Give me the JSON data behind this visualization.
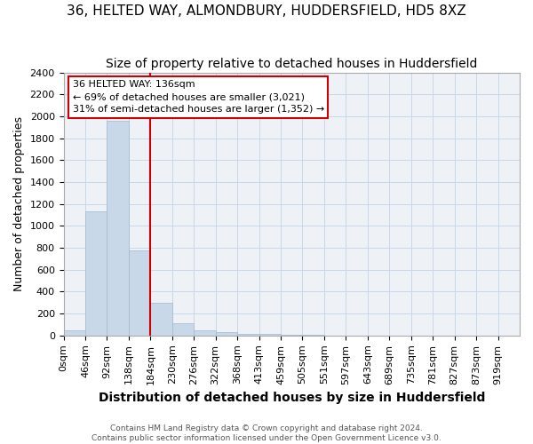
{
  "title1": "36, HELTED WAY, ALMONDBURY, HUDDERSFIELD, HD5 8XZ",
  "title2": "Size of property relative to detached houses in Huddersfield",
  "xlabel": "Distribution of detached houses by size in Huddersfield",
  "ylabel": "Number of detached properties",
  "footer": "Contains HM Land Registry data © Crown copyright and database right 2024.\nContains public sector information licensed under the Open Government Licence v3.0.",
  "bar_labels": [
    "0sqm",
    "46sqm",
    "92sqm",
    "138sqm",
    "184sqm",
    "230sqm",
    "276sqm",
    "322sqm",
    "368sqm",
    "413sqm",
    "459sqm",
    "505sqm",
    "551sqm",
    "597sqm",
    "643sqm",
    "689sqm",
    "735sqm",
    "781sqm",
    "827sqm",
    "873sqm",
    "919sqm"
  ],
  "bar_values": [
    50,
    1130,
    1960,
    775,
    295,
    115,
    50,
    30,
    18,
    12,
    8,
    5,
    0,
    0,
    0,
    0,
    0,
    0,
    0,
    0,
    0
  ],
  "bar_color": "#c8d8e8",
  "bar_edge_color": "#a0b8d0",
  "property_line_x": 3,
  "annotation_line": "36 HELTED WAY: 136sqm",
  "annotation_line2": "← 69% of detached houses are smaller (3,021)",
  "annotation_line3": "31% of semi-detached houses are larger (1,352) →",
  "ylim": [
    0,
    2400
  ],
  "yticks": [
    0,
    200,
    400,
    600,
    800,
    1000,
    1200,
    1400,
    1600,
    1800,
    2000,
    2200,
    2400
  ],
  "grid_color": "#c8d8e8",
  "background_color": "#eef2f7",
  "title_fontsize": 11,
  "title2_fontsize": 10,
  "ylabel_fontsize": 9,
  "xlabel_fontsize": 10,
  "tick_fontsize": 8,
  "footer_fontsize": 6.5,
  "annotation_fontsize": 8,
  "red_color": "#cc0000"
}
